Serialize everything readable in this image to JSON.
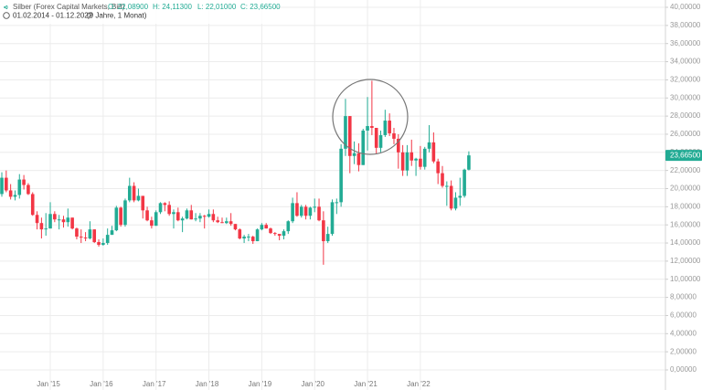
{
  "chart_data": {
    "type": "candlestick",
    "title": "Silber (Forex Capital Markets, Bid)",
    "ohlc": [
      {
        "value": 22.089,
        "label": "O: 22,08900"
      },
      {
        "value": 24.113,
        "label": "H: 24,11300"
      },
      {
        "value": 22.01,
        "label": "L: 22,01000"
      },
      {
        "value": 23.665,
        "label": "C: 23,66500"
      }
    ],
    "subtitle": "01.02.2014 - 01.12.2022",
    "duration": "(9 Jahre, 1 Monat)",
    "last_price": {
      "value": 23.665,
      "label": "23,66500"
    },
    "up_color": "#22ab94",
    "down_color": "#f23645",
    "grid": true,
    "x": [
      "2014-02",
      "2014-03",
      "2014-04",
      "2014-05",
      "2014-06",
      "2014-07",
      "2014-08",
      "2014-09",
      "2014-10",
      "2014-11",
      "2014-12",
      "2015-01",
      "2015-02",
      "2015-03",
      "2015-04",
      "2015-05",
      "2015-06",
      "2015-07",
      "2015-08",
      "2015-09",
      "2015-10",
      "2015-11",
      "2015-12",
      "2016-01",
      "2016-02",
      "2016-03",
      "2016-04",
      "2016-05",
      "2016-06",
      "2016-07",
      "2016-08",
      "2016-09",
      "2016-10",
      "2016-11",
      "2016-12",
      "2017-01",
      "2017-02",
      "2017-03",
      "2017-04",
      "2017-05",
      "2017-06",
      "2017-07",
      "2017-08",
      "2017-09",
      "2017-10",
      "2017-11",
      "2017-12",
      "2018-01",
      "2018-02",
      "2018-03",
      "2018-04",
      "2018-05",
      "2018-06",
      "2018-07",
      "2018-08",
      "2018-09",
      "2018-10",
      "2018-11",
      "2018-12",
      "2019-01",
      "2019-02",
      "2019-03",
      "2019-04",
      "2019-05",
      "2019-06",
      "2019-07",
      "2019-08",
      "2019-09",
      "2019-10",
      "2019-11",
      "2019-12",
      "2020-01",
      "2020-02",
      "2020-03",
      "2020-04",
      "2020-05",
      "2020-06",
      "2020-07",
      "2020-08",
      "2020-09",
      "2020-10",
      "2020-11",
      "2020-12",
      "2021-01",
      "2021-02",
      "2021-03",
      "2021-04",
      "2021-05",
      "2021-06",
      "2021-07",
      "2021-08",
      "2021-09",
      "2021-10",
      "2021-11",
      "2021-12",
      "2022-01",
      "2022-02",
      "2022-03",
      "2022-04",
      "2022-05",
      "2022-06",
      "2022-07",
      "2022-08",
      "2022-09",
      "2022-10",
      "2022-11",
      "2022-12"
    ],
    "open": [
      19.4,
      21.2,
      19.8,
      19.1,
      19.3,
      21.0,
      20.4,
      19.4,
      17.1,
      16.2,
      15.5,
      15.6,
      17.2,
      16.6,
      16.6,
      16.3,
      16.8,
      15.6,
      14.7,
      14.6,
      14.5,
      15.5,
      14.1,
      13.8,
      14.0,
      14.9,
      15.4,
      17.9,
      16.0,
      18.7,
      20.3,
      18.7,
      19.2,
      17.6,
      16.5,
      15.9,
      17.4,
      18.4,
      18.2,
      17.2,
      17.4,
      16.5,
      16.7,
      17.6,
      16.6,
      16.7,
      17.0,
      16.9,
      17.2,
      16.5,
      16.3,
      16.2,
      16.4,
      16.1,
      15.5,
      14.5,
      14.7,
      14.7,
      14.2,
      15.5,
      16.0,
      15.6,
      15.1,
      15.0,
      14.8,
      15.3,
      16.4,
      18.4,
      17.0,
      18.0,
      17.0,
      17.9,
      18.0,
      16.5,
      14.2,
      15.0,
      18.5,
      18.5,
      24.4,
      28.0,
      23.6,
      23.9,
      22.6,
      26.4,
      26.9,
      26.7,
      24.5,
      25.9,
      27.5,
      26.1,
      25.5,
      24.0,
      22.0,
      24.0,
      23.1,
      23.3,
      22.4,
      24.4,
      25.1,
      23.0,
      21.7,
      20.3,
      20.3,
      17.8,
      19.0,
      19.2,
      22.089
    ],
    "high": [
      21.8,
      22.0,
      20.5,
      19.8,
      21.6,
      21.5,
      20.6,
      19.6,
      17.5,
      16.8,
      17.3,
      18.5,
      17.5,
      17.1,
      17.0,
      17.8,
      16.8,
      15.7,
      15.5,
      15.2,
      16.4,
      15.5,
      14.4,
      14.5,
      15.6,
      15.9,
      18.1,
      18.0,
      18.9,
      21.2,
      20.7,
      20.0,
      19.2,
      18.0,
      16.9,
      17.6,
      18.5,
      18.5,
      18.6,
      17.7,
      17.9,
      16.9,
      17.8,
      18.2,
      17.3,
      17.3,
      17.1,
      17.7,
      17.7,
      16.9,
      16.8,
      16.8,
      17.3,
      16.1,
      15.6,
      14.9,
      15.0,
      14.8,
      15.6,
      16.2,
      16.2,
      15.7,
      15.2,
      15.0,
      15.5,
      16.5,
      19.0,
      19.6,
      18.2,
      18.2,
      18.0,
      18.9,
      18.9,
      17.5,
      15.8,
      18.8,
      18.9,
      24.9,
      29.9,
      28.0,
      25.2,
      25.0,
      26.6,
      30.1,
      31.9,
      26.7,
      26.4,
      28.7,
      28.3,
      26.7,
      26.0,
      24.8,
      24.8,
      25.4,
      23.4,
      24.7,
      24.6,
      27.0,
      26.2,
      23.3,
      22.5,
      20.8,
      20.9,
      19.6,
      21.2,
      22.2,
      24.113
    ],
    "low": [
      19.1,
      19.6,
      18.8,
      18.7,
      18.9,
      19.9,
      19.3,
      17.0,
      15.5,
      14.5,
      14.8,
      15.6,
      16.3,
      15.5,
      15.7,
      15.8,
      15.5,
      14.4,
      14.0,
      14.2,
      14.4,
      14.0,
      13.6,
      13.7,
      13.8,
      14.9,
      15.3,
      15.8,
      15.8,
      18.5,
      18.5,
      18.6,
      16.7,
      16.4,
      15.6,
      15.9,
      17.2,
      17.5,
      17.0,
      15.6,
      16.4,
      15.2,
      16.6,
      16.6,
      16.4,
      16.3,
      15.6,
      16.8,
      16.3,
      16.2,
      16.2,
      16.1,
      15.9,
      15.4,
      14.4,
      14.0,
      14.2,
      13.9,
      14.2,
      15.4,
      15.6,
      15.0,
      14.8,
      14.3,
      14.4,
      15.0,
      16.2,
      16.9,
      16.8,
      16.6,
      16.6,
      17.4,
      16.4,
      11.6,
      14.0,
      14.8,
      17.2,
      18.0,
      23.6,
      21.7,
      22.7,
      21.9,
      22.6,
      24.2,
      25.9,
      23.8,
      24.0,
      25.7,
      25.8,
      24.9,
      22.2,
      21.4,
      21.4,
      22.5,
      21.4,
      22.1,
      22.1,
      24.0,
      22.8,
      20.5,
      20.1,
      18.1,
      17.6,
      17.6,
      18.1,
      19.0,
      22.01
    ],
    "close": [
      21.2,
      19.8,
      19.1,
      19.3,
      21.0,
      20.4,
      19.4,
      17.1,
      16.2,
      15.5,
      15.6,
      17.2,
      16.6,
      16.6,
      16.3,
      16.8,
      15.6,
      14.7,
      14.6,
      14.5,
      15.5,
      14.1,
      13.8,
      14.0,
      14.9,
      15.4,
      17.9,
      16.0,
      18.7,
      20.3,
      18.7,
      19.2,
      17.6,
      16.5,
      15.9,
      17.4,
      18.4,
      18.2,
      17.2,
      17.4,
      16.5,
      16.7,
      17.6,
      16.6,
      16.7,
      17.0,
      16.9,
      17.2,
      16.5,
      16.3,
      16.2,
      16.4,
      16.1,
      15.5,
      14.5,
      14.7,
      14.7,
      14.2,
      15.5,
      16.0,
      15.6,
      15.1,
      15.0,
      14.8,
      15.3,
      16.4,
      18.4,
      17.0,
      18.0,
      17.0,
      17.9,
      18.0,
      16.5,
      14.2,
      15.0,
      18.5,
      18.5,
      24.4,
      28.0,
      23.6,
      23.9,
      22.6,
      26.4,
      26.9,
      26.7,
      24.5,
      25.9,
      27.5,
      26.1,
      25.5,
      24.0,
      22.0,
      24.0,
      23.1,
      23.3,
      22.4,
      24.4,
      25.1,
      23.0,
      21.7,
      20.3,
      20.3,
      17.8,
      19.0,
      19.2,
      22.089,
      23.665
    ],
    "xticks": [
      {
        "value": "2015-01",
        "label": "Jan '15"
      },
      {
        "value": "2016-01",
        "label": "Jan '16"
      },
      {
        "value": "2017-01",
        "label": "Jan '17"
      },
      {
        "value": "2018-01",
        "label": "Jan '18"
      },
      {
        "value": "2019-01",
        "label": "Jan '19"
      },
      {
        "value": "2020-01",
        "label": "Jan '20"
      },
      {
        "value": "2021-01",
        "label": "Jan '21"
      },
      {
        "value": "2022-01",
        "label": "Jan '22"
      }
    ],
    "ylim": [
      0,
      40
    ],
    "yticks": [
      {
        "value": 0,
        "label": "0,00000"
      },
      {
        "value": 2,
        "label": "2,00000"
      },
      {
        "value": 4,
        "label": "4,00000"
      },
      {
        "value": 6,
        "label": "6,00000"
      },
      {
        "value": 8,
        "label": "8,00000"
      },
      {
        "value": 10,
        "label": "10,00000"
      },
      {
        "value": 12,
        "label": "12,00000"
      },
      {
        "value": 14,
        "label": "14,00000"
      },
      {
        "value": 16,
        "label": "16,00000"
      },
      {
        "value": 18,
        "label": "18,00000"
      },
      {
        "value": 20,
        "label": "20,00000"
      },
      {
        "value": 22,
        "label": "22,00000"
      },
      {
        "value": 24,
        "label": "24,00000"
      },
      {
        "value": 26,
        "label": "26,00000"
      },
      {
        "value": 28,
        "label": "28,00000"
      },
      {
        "value": 30,
        "label": "30,00000"
      },
      {
        "value": 32,
        "label": "32,00000"
      },
      {
        "value": 34,
        "label": "34,00000"
      },
      {
        "value": 36,
        "label": "36,00000"
      },
      {
        "value": 38,
        "label": "38,00000"
      },
      {
        "value": 40,
        "label": "40,00000"
      }
    ]
  }
}
